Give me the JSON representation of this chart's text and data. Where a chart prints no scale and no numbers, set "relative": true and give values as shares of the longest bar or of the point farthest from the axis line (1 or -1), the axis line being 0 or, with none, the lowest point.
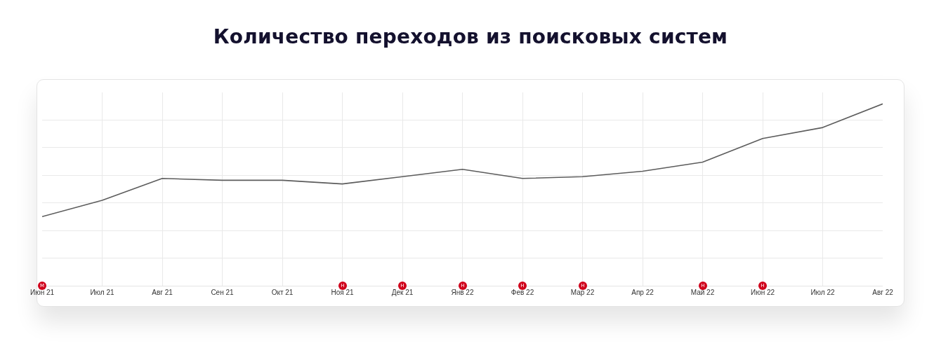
{
  "chart_data": {
    "type": "line",
    "title": "Количество переходов из поисковых систем",
    "categories": [
      "Июн 21",
      "Июл 21",
      "Авг 21",
      "Сен 21",
      "Окт 21",
      "Ноя 21",
      "Дек 21",
      "Янв 22",
      "Фев 22",
      "Мар 22",
      "Апр 22",
      "Май 22",
      "Июн 22",
      "Июл 22",
      "Авг 22"
    ],
    "series": [
      {
        "color": "#5c5c5c",
        "values": [
          0.38,
          0.47,
          0.59,
          0.58,
          0.58,
          0.56,
          0.6,
          0.64,
          0.59,
          0.6,
          0.63,
          0.68,
          0.81,
          0.87,
          1
        ]
      }
    ],
    "relative": true,
    "grid": true,
    "annotations": [
      {
        "text": "М",
        "x": "Июн 21",
        "y": 0
      },
      {
        "text": "Н",
        "x": "Ноя 21",
        "y": 0
      },
      {
        "text": "Н",
        "x": "Дек 21",
        "y": 0
      },
      {
        "text": "Н",
        "x": "Янв 22",
        "y": 0
      },
      {
        "text": "Н",
        "x": "Фев 22",
        "y": 0
      },
      {
        "text": "Н",
        "x": "Мар 22",
        "y": 0
      },
      {
        "text": "Н",
        "x": "Май 22",
        "y": 0
      },
      {
        "text": "Н",
        "x": "Июн 22",
        "y": 0
      }
    ]
  }
}
